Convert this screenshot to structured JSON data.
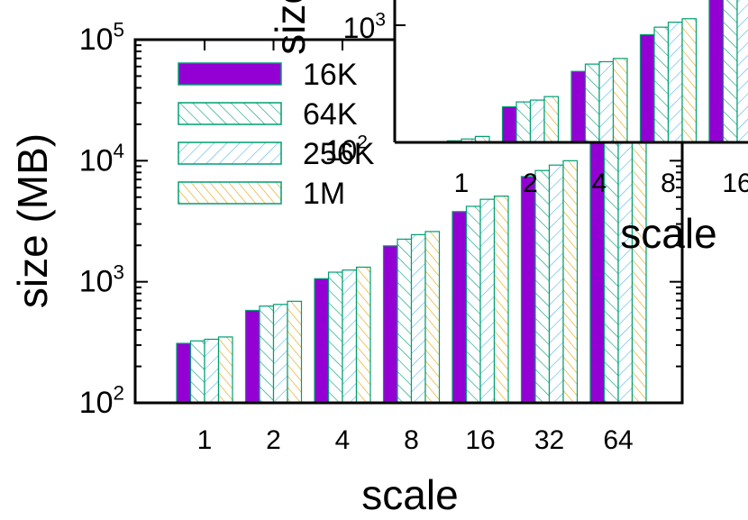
{
  "chart_data": [
    {
      "type": "bar",
      "scale": "log",
      "xlabel": "scale",
      "ylabel": "size (MB)",
      "ylim": [
        100,
        100000
      ],
      "y_ticks": [
        {
          "base": "10",
          "exp": "2"
        },
        {
          "base": "10",
          "exp": "3"
        },
        {
          "base": "10",
          "exp": "4"
        },
        {
          "base": "10",
          "exp": "5"
        }
      ],
      "categories": [
        "1",
        "2",
        "4",
        "8",
        "16",
        "32",
        "64"
      ],
      "series": [
        {
          "name": "16K",
          "values": [
            310,
            580,
            1060,
            1980,
            3800,
            7400,
            15000
          ]
        },
        {
          "name": "64K",
          "values": [
            325,
            630,
            1200,
            2250,
            4200,
            8300,
            17000
          ]
        },
        {
          "name": "256K",
          "values": [
            335,
            650,
            1250,
            2450,
            4800,
            9200,
            19000
          ]
        },
        {
          "name": "1M",
          "values": [
            350,
            690,
            1320,
            2600,
            5100,
            10000,
            20000
          ]
        }
      ],
      "legend": [
        "16K",
        "64K",
        "256K",
        "1M"
      ],
      "legend_position": "top-left"
    },
    {
      "type": "bar",
      "scale": "log",
      "note": "overlapping inset, partially cut off",
      "xlabel": "scale",
      "ylabel": "size",
      "y_ticks": [
        {
          "base": "10",
          "exp": "2"
        },
        {
          "base": "10",
          "exp": "3"
        }
      ],
      "categories": [
        "1",
        "2",
        "4",
        "8",
        "16"
      ],
      "series": [
        {
          "name": "16K",
          "values": [
            310,
            580,
            1060,
            1980,
            3800
          ]
        },
        {
          "name": "64K",
          "values": [
            325,
            630,
            1200,
            2250,
            4200
          ]
        },
        {
          "name": "256K",
          "values": [
            335,
            650,
            1250,
            2450,
            4800
          ]
        },
        {
          "name": "1M",
          "values": [
            350,
            690,
            1320,
            2600,
            5100
          ]
        }
      ]
    }
  ],
  "colors": {
    "series_fill_16K": "#9400d3",
    "series_stroke": "#009e73",
    "hatch_64K": "#009e73",
    "hatch_256K": "#56b4e9",
    "hatch_1M": "#e69f00"
  }
}
